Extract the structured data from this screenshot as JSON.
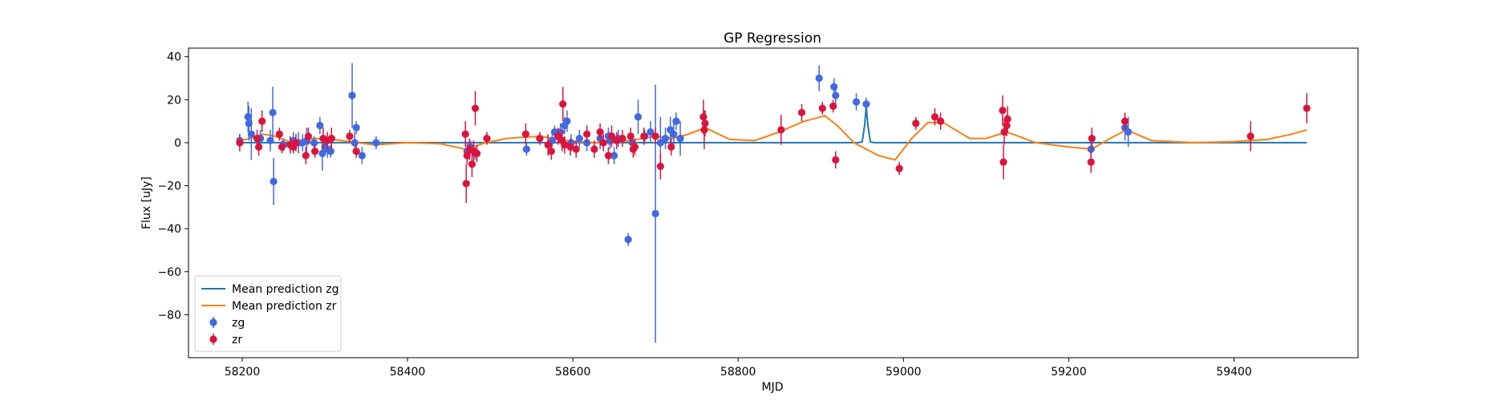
{
  "chart_data": {
    "type": "scatter",
    "title": "GP Regression",
    "xlabel": "MJD",
    "ylabel": "Flux [uJy]",
    "xlim": [
      58135,
      59550
    ],
    "ylim": [
      -100,
      44
    ],
    "xticks": [
      58200,
      58400,
      58600,
      58800,
      59000,
      59200,
      59400
    ],
    "yticks": [
      40,
      20,
      0,
      -20,
      -40,
      -60,
      -80
    ],
    "legend_position": "lower-left",
    "colors": {
      "mean_zg": "#1f77b4",
      "mean_zr": "#ff7f0e",
      "points_zg": "#4169e1",
      "points_zr": "#dc143c"
    },
    "legend": [
      {
        "label": "Mean prediction zg",
        "kind": "line",
        "color": "#1f77b4"
      },
      {
        "label": "Mean prediction zr",
        "kind": "line",
        "color": "#ff7f0e"
      },
      {
        "label": "zg",
        "kind": "errorbar",
        "color": "#4169e1"
      },
      {
        "label": "zr",
        "kind": "errorbar",
        "color": "#dc143c"
      }
    ],
    "series": [
      {
        "name": "zg",
        "kind": "errorbar",
        "points": [
          [
            58197,
            1,
            3
          ],
          [
            58207,
            12,
            7
          ],
          [
            58208,
            9,
            8
          ],
          [
            58211,
            4,
            12
          ],
          [
            58222,
            2,
            4
          ],
          [
            58234,
            1,
            5
          ],
          [
            58237,
            14,
            12
          ],
          [
            58238,
            -18,
            11
          ],
          [
            58250,
            -1,
            3
          ],
          [
            58262,
            1,
            4
          ],
          [
            58268,
            0,
            5
          ],
          [
            58273,
            0,
            4
          ],
          [
            58278,
            1,
            6
          ],
          [
            58287,
            0,
            3
          ],
          [
            58294,
            8,
            4
          ],
          [
            58297,
            -5,
            8
          ],
          [
            58300,
            -2,
            4
          ],
          [
            58303,
            -3,
            4
          ],
          [
            58307,
            -4,
            3
          ],
          [
            58333,
            22,
            15
          ],
          [
            58336,
            0,
            5
          ],
          [
            58338,
            7,
            3
          ],
          [
            58345,
            -6,
            4
          ],
          [
            58362,
            0,
            3
          ],
          [
            58472,
            -4,
            4
          ],
          [
            58476,
            -2,
            3
          ],
          [
            58482,
            -5,
            3
          ],
          [
            58544,
            -3,
            3
          ],
          [
            58575,
            1,
            3
          ],
          [
            58578,
            5,
            3
          ],
          [
            58585,
            5,
            4
          ],
          [
            58590,
            8,
            4
          ],
          [
            58593,
            10,
            5
          ],
          [
            58598,
            0,
            4
          ],
          [
            58608,
            2,
            4
          ],
          [
            58617,
            0,
            4
          ],
          [
            58633,
            2,
            5
          ],
          [
            58643,
            3,
            4
          ],
          [
            58645,
            1,
            4
          ],
          [
            58650,
            -6,
            4
          ],
          [
            58655,
            2,
            4
          ],
          [
            58667,
            -45,
            3
          ],
          [
            58672,
            0,
            4
          ],
          [
            58679,
            12,
            8
          ],
          [
            58687,
            3,
            3
          ],
          [
            58694,
            5,
            5
          ],
          [
            58700,
            -33,
            60
          ],
          [
            58706,
            0,
            12
          ],
          [
            58712,
            2,
            5
          ],
          [
            58718,
            6,
            6
          ],
          [
            58722,
            4,
            5
          ],
          [
            58725,
            10,
            4
          ],
          [
            58730,
            2,
            8
          ],
          [
            58898,
            30,
            6
          ],
          [
            58916,
            26,
            4
          ],
          [
            58918,
            22,
            4
          ],
          [
            58943,
            19,
            4
          ],
          [
            58955,
            18,
            3
          ],
          [
            59227,
            -3,
            3
          ],
          [
            59268,
            7,
            6
          ],
          [
            59272,
            5,
            7
          ]
        ]
      },
      {
        "name": "zr",
        "kind": "errorbar",
        "points": [
          [
            58197,
            0,
            4
          ],
          [
            58218,
            2,
            4
          ],
          [
            58220,
            -2,
            4
          ],
          [
            58224,
            10,
            5
          ],
          [
            58245,
            4,
            3
          ],
          [
            58248,
            -2,
            3
          ],
          [
            58258,
            -1,
            4
          ],
          [
            58262,
            -2,
            3
          ],
          [
            58265,
            0,
            4
          ],
          [
            58277,
            -6,
            4
          ],
          [
            58280,
            3,
            4
          ],
          [
            58288,
            -4,
            3
          ],
          [
            58298,
            2,
            5
          ],
          [
            58303,
            1,
            4
          ],
          [
            58308,
            2,
            5
          ],
          [
            58330,
            3,
            3
          ],
          [
            58338,
            -4,
            3
          ],
          [
            58470,
            4,
            6
          ],
          [
            58471,
            -19,
            9
          ],
          [
            58472,
            -6,
            4
          ],
          [
            58475,
            -3,
            5
          ],
          [
            58478,
            -10,
            6
          ],
          [
            58480,
            -4,
            5
          ],
          [
            58482,
            16,
            8
          ],
          [
            58484,
            -5,
            4
          ],
          [
            58496,
            2,
            3
          ],
          [
            58543,
            4,
            5
          ],
          [
            58560,
            2,
            3
          ],
          [
            58570,
            -1,
            5
          ],
          [
            58574,
            -4,
            4
          ],
          [
            58582,
            3,
            4
          ],
          [
            58587,
            1,
            5
          ],
          [
            58588,
            18,
            8
          ],
          [
            58590,
            -1,
            4
          ],
          [
            58597,
            -2,
            4
          ],
          [
            58604,
            -3,
            4
          ],
          [
            58617,
            4,
            4
          ],
          [
            58626,
            -3,
            4
          ],
          [
            58633,
            5,
            4
          ],
          [
            58637,
            0,
            4
          ],
          [
            58643,
            -6,
            4
          ],
          [
            58647,
            3,
            5
          ],
          [
            58653,
            1,
            4
          ],
          [
            58660,
            2,
            4
          ],
          [
            58670,
            3,
            4
          ],
          [
            58673,
            -3,
            4
          ],
          [
            58675,
            -2,
            4
          ],
          [
            58686,
            3,
            4
          ],
          [
            58700,
            3,
            4
          ],
          [
            58706,
            -11,
            6
          ],
          [
            58719,
            -2,
            4
          ],
          [
            58758,
            12,
            8
          ],
          [
            58759,
            6,
            9
          ],
          [
            58760,
            9,
            6
          ],
          [
            58852,
            6,
            7
          ],
          [
            58877,
            14,
            4
          ],
          [
            58902,
            16,
            3
          ],
          [
            58915,
            17,
            3
          ],
          [
            58918,
            -8,
            4
          ],
          [
            58995,
            -12,
            3
          ],
          [
            59015,
            9,
            3
          ],
          [
            59038,
            12,
            4
          ],
          [
            59045,
            10,
            4
          ],
          [
            59120,
            15,
            7
          ],
          [
            59121,
            -9,
            8
          ],
          [
            59122,
            5,
            6
          ],
          [
            59125,
            8,
            5
          ],
          [
            59126,
            11,
            6
          ],
          [
            59227,
            -9,
            5
          ],
          [
            59228,
            2,
            5
          ],
          [
            59268,
            10,
            4
          ],
          [
            59420,
            3,
            7
          ],
          [
            59488,
            16,
            7
          ]
        ]
      },
      {
        "name": "Mean prediction zg",
        "kind": "line",
        "points": [
          [
            58197,
            0
          ],
          [
            58945,
            0
          ],
          [
            58950,
            0.3
          ],
          [
            58953,
            8
          ],
          [
            58955,
            17
          ],
          [
            58957,
            8
          ],
          [
            58960,
            0.3
          ],
          [
            58965,
            0
          ],
          [
            59488,
            0
          ]
        ]
      },
      {
        "name": "Mean prediction zr",
        "kind": "line",
        "points": [
          [
            58197,
            1
          ],
          [
            58210,
            2
          ],
          [
            58225,
            4
          ],
          [
            58240,
            3
          ],
          [
            58260,
            0
          ],
          [
            58285,
            2
          ],
          [
            58310,
            1.5
          ],
          [
            58330,
            0.5
          ],
          [
            58360,
            -1
          ],
          [
            58400,
            0
          ],
          [
            58440,
            -0.5
          ],
          [
            58470,
            -3
          ],
          [
            58495,
            0
          ],
          [
            58520,
            2
          ],
          [
            58560,
            3
          ],
          [
            58590,
            1
          ],
          [
            58620,
            0
          ],
          [
            58640,
            0
          ],
          [
            58670,
            1
          ],
          [
            58700,
            3
          ],
          [
            58720,
            2
          ],
          [
            58740,
            4
          ],
          [
            58760,
            7
          ],
          [
            58790,
            1.5
          ],
          [
            58820,
            1
          ],
          [
            58850,
            5
          ],
          [
            58880,
            10
          ],
          [
            58905,
            12.5
          ],
          [
            58920,
            8
          ],
          [
            58940,
            0
          ],
          [
            58970,
            -6
          ],
          [
            58990,
            -8
          ],
          [
            59010,
            2
          ],
          [
            59030,
            9.5
          ],
          [
            59050,
            9
          ],
          [
            59080,
            2
          ],
          [
            59100,
            2
          ],
          [
            59125,
            5
          ],
          [
            59160,
            0
          ],
          [
            59200,
            -2
          ],
          [
            59228,
            -3
          ],
          [
            59250,
            2
          ],
          [
            59270,
            6
          ],
          [
            59300,
            1
          ],
          [
            59350,
            0
          ],
          [
            59400,
            0.5
          ],
          [
            59440,
            1.5
          ],
          [
            59470,
            4
          ],
          [
            59488,
            6
          ]
        ]
      }
    ]
  }
}
